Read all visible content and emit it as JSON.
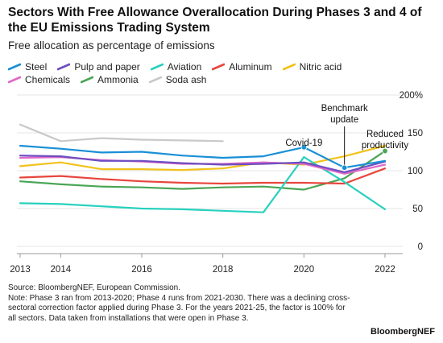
{
  "header": {
    "title": "Sectors With Free Allowance Overallocation During Phases 3 and 4 of the EU Emissions Trading System",
    "subtitle": "Free allocation as percentage of emissions"
  },
  "footer": {
    "source": "Source: BloombergNEF, European Commission.",
    "note": "Note: Phase 3 ran from 2013-2020; Phase 4 runs from 2021-2030. There was a declining cross-sectoral correction factor applied during Phase 3. For the years 2021-25, the factor is 100% for all sectors. Data taken from installations that were open in Phase 3.",
    "brand": "BloombergNEF"
  },
  "chart_data": {
    "type": "line",
    "x": [
      2013,
      2014,
      2015,
      2016,
      2017,
      2018,
      2019,
      2020,
      2021,
      2022
    ],
    "x_ticks": [
      "2013",
      "2014",
      "2016",
      "2018",
      "2020",
      "2022"
    ],
    "y_ticks": [
      "200%",
      "150",
      "100",
      "50",
      "0"
    ],
    "ylim": [
      0,
      200
    ],
    "grid": true,
    "legend": "top",
    "series": [
      {
        "name": "Steel",
        "color": "#1a8fd6",
        "values": [
          133,
          129,
          124,
          125,
          120,
          117,
          119,
          131,
          104,
          113
        ]
      },
      {
        "name": "Pulp and paper",
        "color": "#6d4ec2",
        "values": [
          120,
          119,
          113,
          113,
          110,
          108,
          109,
          111,
          98,
          112
        ]
      },
      {
        "name": "Aviation",
        "color": "#28d1be",
        "values": [
          57,
          56,
          53,
          50,
          49,
          47,
          45,
          118,
          85,
          49
        ]
      },
      {
        "name": "Aluminum",
        "color": "#e8453c",
        "values": [
          91,
          93,
          89,
          86,
          84,
          83,
          84,
          84,
          83,
          103
        ]
      },
      {
        "name": "Nitric acid",
        "color": "#f2c21b",
        "values": [
          106,
          111,
          102,
          102,
          101,
          103,
          111,
          108,
          119,
          133
        ]
      },
      {
        "name": "Chemicals",
        "color": "#e069c8",
        "values": [
          117,
          118,
          114,
          112,
          109,
          109,
          111,
          109,
          96,
          108
        ]
      },
      {
        "name": "Ammonia",
        "color": "#4aa555",
        "values": [
          86,
          82,
          79,
          78,
          76,
          78,
          79,
          75,
          90,
          126
        ]
      },
      {
        "name": "Soda ash",
        "color": "#c9c9c9",
        "values": [
          161,
          139,
          143,
          141,
          140,
          139,
          null,
          null,
          null,
          null
        ]
      }
    ],
    "annotations": [
      {
        "text": "Covid-19",
        "x": 2020
      },
      {
        "text": "Benchmark\nupdate",
        "x": 2021
      },
      {
        "text": "Reduced\nproductivity",
        "x": 2022
      }
    ]
  }
}
